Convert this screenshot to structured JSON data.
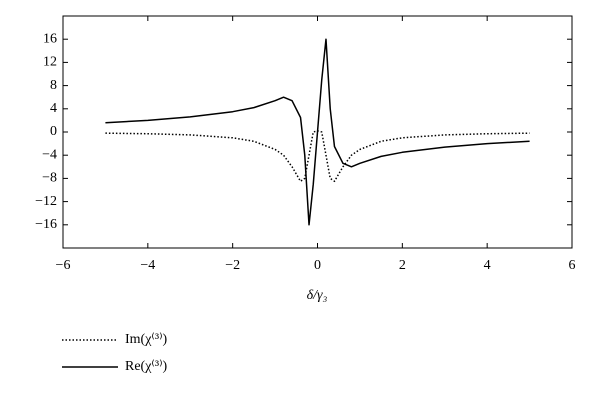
{
  "chart_data": {
    "type": "line",
    "x_label": "δ/γ₃",
    "x": [
      -5,
      -4,
      -3,
      -2,
      -1.5,
      -1,
      -0.8,
      -0.6,
      -0.4,
      -0.3,
      -0.2,
      -0.1,
      0,
      0.1,
      0.2,
      0.3,
      0.4,
      0.6,
      0.8,
      1,
      1.5,
      2,
      3,
      4,
      5
    ],
    "series": [
      {
        "name": "Im(χ⁽³⁾)",
        "color": "#000000",
        "dash": "dotted",
        "values": [
          -0.2,
          -0.3,
          -0.5,
          -1,
          -1.6,
          -3,
          -4,
          -6,
          -8.5,
          -8,
          -4,
          0,
          0.2,
          0,
          -4,
          -8,
          -8.5,
          -6,
          -4,
          -3,
          -1.6,
          -1,
          -0.5,
          -0.3,
          -0.2
        ]
      },
      {
        "name": "Re(χ⁽³⁾)",
        "color": "#000000",
        "dash": "solid",
        "values": [
          1.6,
          2,
          2.6,
          3.5,
          4.2,
          5.4,
          6,
          5.4,
          2.5,
          -4,
          -16,
          -9,
          0,
          9,
          16,
          4,
          -2.5,
          -5.4,
          -6,
          -5.4,
          -4.2,
          -3.5,
          -2.6,
          -2,
          -1.6
        ]
      }
    ],
    "xlim": [
      -6,
      6
    ],
    "xticks": [
      {
        "value": -6,
        "label": "−6"
      },
      {
        "value": -4,
        "label": "−4"
      },
      {
        "value": -2,
        "label": "−2"
      },
      0,
      2,
      4,
      6
    ],
    "ylim": [
      -20,
      20
    ],
    "yticks": [
      {
        "value": -16,
        "label": "−16"
      },
      {
        "value": -12,
        "label": "−12"
      },
      {
        "value": -8,
        "label": "−8"
      },
      {
        "value": -4,
        "label": "−4"
      },
      0,
      4,
      8,
      12,
      16
    ],
    "grid": false
  }
}
